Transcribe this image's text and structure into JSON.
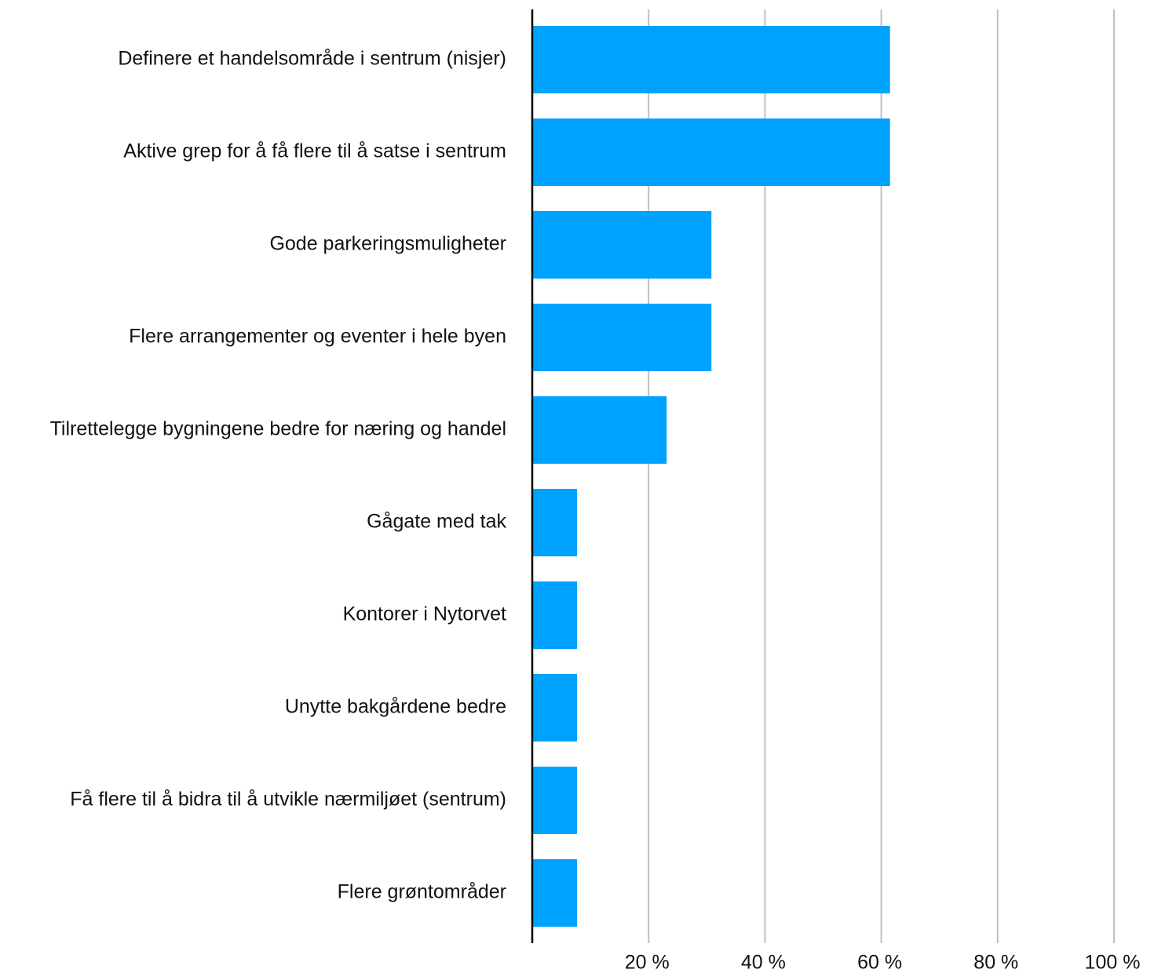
{
  "chart_data": {
    "type": "bar",
    "orientation": "horizontal",
    "categories": [
      "Definere et handelsområde i sentrum (nisjer)",
      "Aktive grep for å få flere til å satse i sentrum",
      "Gode parkeringsmuligheter",
      "Flere arrangementer og eventer i hele byen",
      "Tilrettelegge bygningene bedre for næring og handel",
      "Gågate med tak",
      "Kontorer i Nytorvet",
      "Unytte bakgårdene bedre",
      "Få flere til å bidra til å utvikle nærmiljøet (sentrum)",
      "Flere grøntområder"
    ],
    "values": [
      61.5,
      61.5,
      30.8,
      30.8,
      23.1,
      7.7,
      7.7,
      7.7,
      7.7,
      7.7
    ],
    "xlim": [
      0,
      100
    ],
    "x_ticks": [
      20,
      40,
      60,
      80,
      100
    ],
    "x_tick_labels": [
      "20 %",
      "40 %",
      "60 %",
      "80 %",
      "100 %"
    ],
    "grid": "vertical",
    "bar_color": "#00A2FF",
    "grid_color": "#c0c0c0",
    "axis_color": "#000000",
    "title": "",
    "xlabel": "",
    "ylabel": ""
  }
}
